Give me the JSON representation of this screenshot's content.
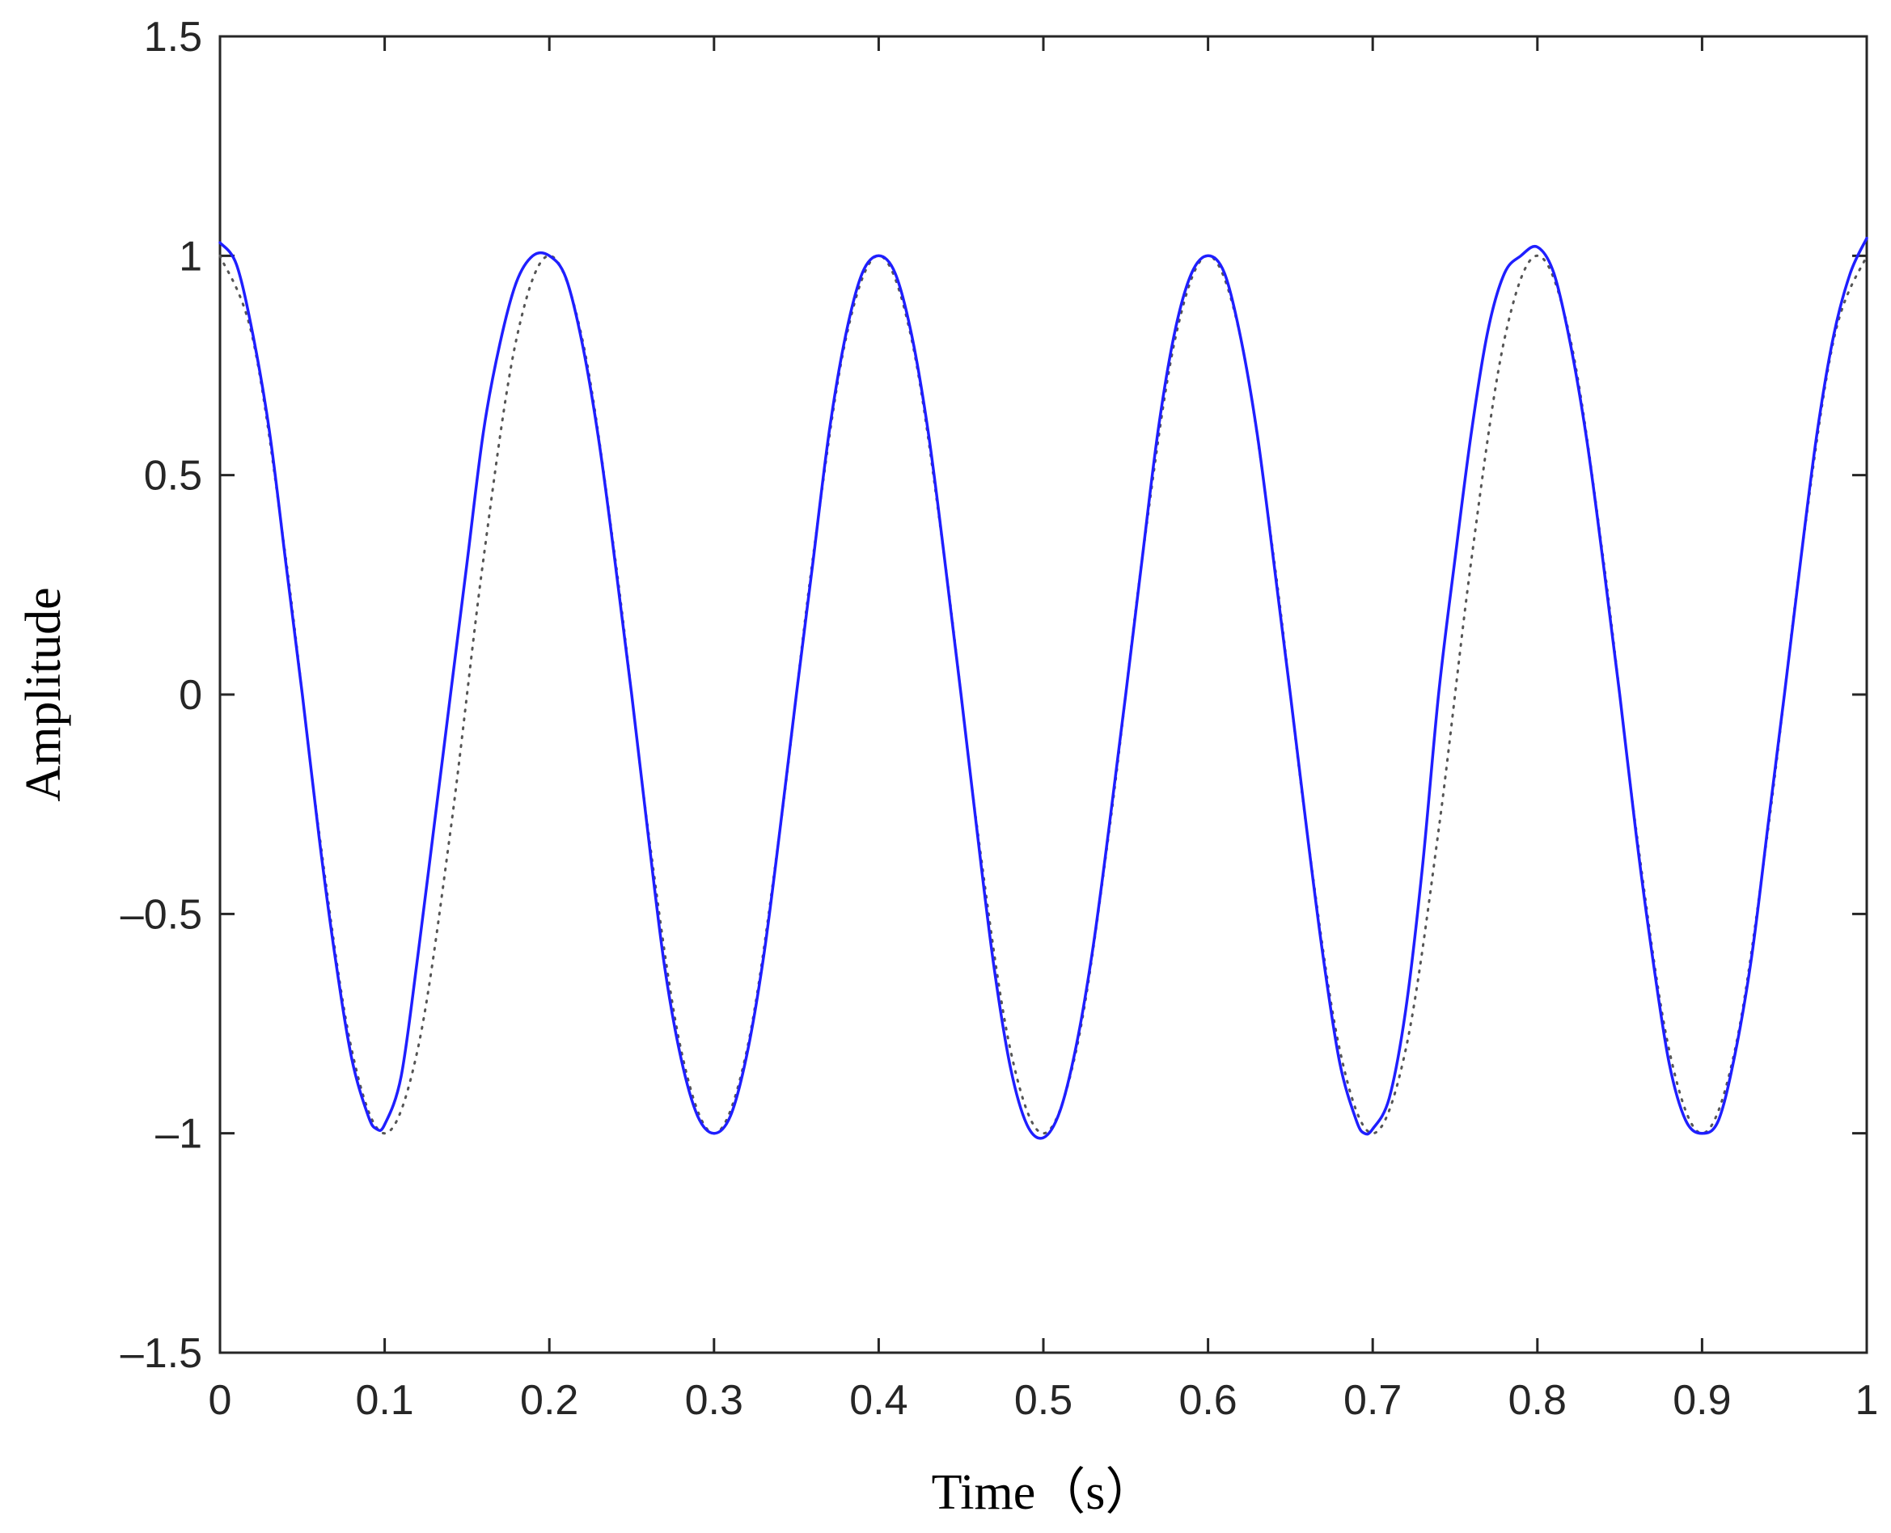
{
  "chart_data": {
    "type": "line",
    "title": "",
    "xlabel": "Time（s）",
    "ylabel": "Amplitude",
    "xlim": [
      0,
      1
    ],
    "ylim": [
      -1.5,
      1.5
    ],
    "xticks": [
      0,
      0.1,
      0.2,
      0.3,
      0.4,
      0.5,
      0.6,
      0.7,
      0.8,
      0.9,
      1
    ],
    "xtick_labels": [
      "0",
      "0.1",
      "0.2",
      "0.3",
      "0.4",
      "0.5",
      "0.6",
      "0.7",
      "0.8",
      "0.9",
      "1"
    ],
    "yticks": [
      1.5,
      1,
      0.5,
      0,
      -0.5,
      -1,
      -1.5
    ],
    "ytick_labels": [
      "1.5",
      "1",
      "0.5",
      "0",
      "–0.5",
      "–1",
      "–1.5"
    ],
    "grid": false,
    "legend": "none",
    "series": [
      {
        "style": "dotted",
        "color": "#555555",
        "x": [
          0.0,
          0.02,
          0.04,
          0.06,
          0.08,
          0.1,
          0.12,
          0.14,
          0.16,
          0.18,
          0.2,
          0.22,
          0.24,
          0.26,
          0.28,
          0.3,
          0.32,
          0.34,
          0.36,
          0.38,
          0.4,
          0.42,
          0.44,
          0.46,
          0.48,
          0.5,
          0.52,
          0.54,
          0.56,
          0.58,
          0.6,
          0.62,
          0.64,
          0.66,
          0.68,
          0.7,
          0.72,
          0.74,
          0.76,
          0.78,
          0.8,
          0.82,
          0.84,
          0.86,
          0.88,
          0.9,
          0.92,
          0.94,
          0.96,
          0.98,
          1.0
        ],
        "values": [
          1.0,
          0.81,
          0.31,
          -0.31,
          -0.81,
          -1.0,
          -0.81,
          -0.31,
          0.31,
          0.81,
          1.0,
          0.81,
          0.31,
          -0.31,
          -0.81,
          -1.0,
          -0.81,
          -0.31,
          0.31,
          0.81,
          1.0,
          0.81,
          0.31,
          -0.31,
          -0.81,
          -1.0,
          -0.81,
          -0.31,
          0.31,
          0.81,
          1.0,
          0.81,
          0.31,
          -0.31,
          -0.81,
          -1.0,
          -0.81,
          -0.31,
          0.31,
          0.81,
          1.0,
          0.81,
          0.31,
          -0.31,
          -0.81,
          -1.0,
          -0.81,
          -0.31,
          0.31,
          0.81,
          1.0
        ]
      },
      {
        "style": "solid",
        "color": "#1f1fff",
        "x": [
          0.0,
          0.01,
          0.02,
          0.03,
          0.04,
          0.05,
          0.06,
          0.07,
          0.08,
          0.09,
          0.095,
          0.1,
          0.11,
          0.12,
          0.13,
          0.14,
          0.15,
          0.16,
          0.17,
          0.18,
          0.19,
          0.2,
          0.21,
          0.22,
          0.23,
          0.24,
          0.25,
          0.26,
          0.27,
          0.28,
          0.29,
          0.3,
          0.31,
          0.32,
          0.33,
          0.34,
          0.35,
          0.36,
          0.37,
          0.38,
          0.39,
          0.4,
          0.41,
          0.42,
          0.43,
          0.44,
          0.45,
          0.46,
          0.47,
          0.48,
          0.49,
          0.5,
          0.51,
          0.52,
          0.53,
          0.54,
          0.55,
          0.56,
          0.57,
          0.58,
          0.59,
          0.6,
          0.61,
          0.62,
          0.63,
          0.64,
          0.65,
          0.66,
          0.67,
          0.68,
          0.69,
          0.695,
          0.7,
          0.71,
          0.72,
          0.73,
          0.74,
          0.75,
          0.76,
          0.77,
          0.78,
          0.79,
          0.8,
          0.81,
          0.82,
          0.83,
          0.84,
          0.85,
          0.86,
          0.87,
          0.88,
          0.89,
          0.9,
          0.91,
          0.92,
          0.93,
          0.94,
          0.95,
          0.96,
          0.97,
          0.98,
          0.99,
          1.0
        ],
        "values": [
          1.03,
          0.98,
          0.82,
          0.6,
          0.3,
          0.0,
          -0.32,
          -0.6,
          -0.83,
          -0.96,
          -0.99,
          -0.98,
          -0.87,
          -0.6,
          -0.3,
          0.0,
          0.3,
          0.6,
          0.8,
          0.94,
          1.0,
          1.0,
          0.95,
          0.8,
          0.58,
          0.3,
          0.0,
          -0.32,
          -0.62,
          -0.83,
          -0.96,
          -1.0,
          -0.96,
          -0.82,
          -0.6,
          -0.31,
          0.0,
          0.3,
          0.6,
          0.82,
          0.96,
          1.0,
          0.96,
          0.82,
          0.6,
          0.31,
          0.0,
          -0.32,
          -0.62,
          -0.85,
          -0.98,
          -1.01,
          -0.95,
          -0.8,
          -0.58,
          -0.3,
          0.0,
          0.31,
          0.61,
          0.83,
          0.96,
          1.0,
          0.96,
          0.81,
          0.59,
          0.3,
          0.0,
          -0.31,
          -0.6,
          -0.84,
          -0.97,
          -1.0,
          -0.99,
          -0.92,
          -0.72,
          -0.4,
          0.0,
          0.31,
          0.6,
          0.83,
          0.96,
          1.0,
          1.02,
          0.96,
          0.8,
          0.58,
          0.3,
          0.0,
          -0.32,
          -0.6,
          -0.84,
          -0.97,
          -1.0,
          -0.97,
          -0.82,
          -0.6,
          -0.3,
          0.0,
          0.31,
          0.6,
          0.82,
          0.96,
          1.04
        ]
      }
    ]
  }
}
